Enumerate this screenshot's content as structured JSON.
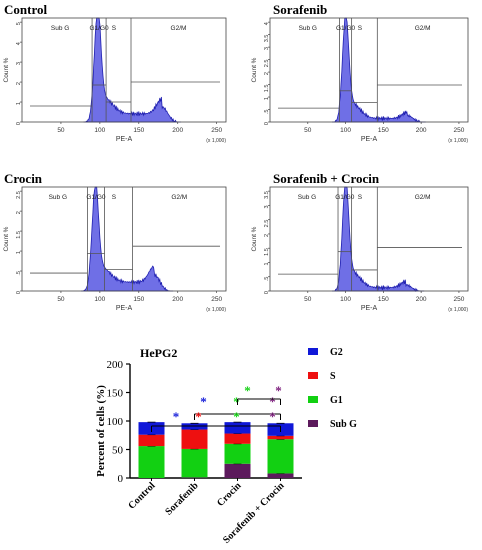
{
  "histograms": [
    {
      "title": "Control",
      "gate_labels": {
        "subg": "Sub G",
        "g1g0": "G1/G0",
        "s": "S",
        "g2m": "G2/M"
      },
      "y_label": "Count %",
      "y_ticks": [
        "0",
        "1",
        "2",
        "3",
        "4",
        "5"
      ],
      "y_max": 5.2,
      "x_label": "PE-A",
      "x_ticks": [
        "50",
        "100",
        "150",
        "200",
        "250"
      ],
      "x_multiplier": "(x 1,000)",
      "peak_x": 97,
      "peak_y": 5.0,
      "g2_x": 180,
      "g2_y": 0.75,
      "gates": {
        "subg_end": 90,
        "g1_end": 108,
        "s_end": 140
      },
      "gate_levels": {
        "subg": 0.8,
        "g1": 1.85,
        "s": 1.0,
        "g2m": 2.0
      }
    },
    {
      "title": "Sorafenib",
      "gate_labels": {
        "subg": "Sub G",
        "g1g0": "G1/G0",
        "s": "S",
        "g2m": "G2/M"
      },
      "y_label": "Count %",
      "y_ticks": [
        "0",
        ".5",
        "1",
        "1.5",
        "2",
        "2.5",
        "3",
        "3.5",
        "4"
      ],
      "y_max": 4.5,
      "x_label": "PE-A",
      "x_ticks": [
        "50",
        "100",
        "150",
        "200",
        "250"
      ],
      "x_multiplier": "(x 1,000)",
      "peak_x": 100,
      "peak_y": 4.1,
      "g2_x": 182,
      "g2_y": 0.28,
      "gates": {
        "subg_end": 92,
        "g1_end": 108,
        "s_end": 142
      },
      "gate_levels": {
        "subg": 0.6,
        "g1": 1.35,
        "s": 0.85,
        "g2m": 1.6
      }
    },
    {
      "title": "Crocin",
      "gate_labels": {
        "subg": "Sub G",
        "g1g0": "G1/G0",
        "s": "S",
        "g2m": "G2/M"
      },
      "y_label": "Count %",
      "y_ticks": [
        "0",
        ".5",
        "1",
        "1.5",
        "2",
        "2.5"
      ],
      "y_max": 2.9,
      "x_label": "PE-A",
      "x_ticks": [
        "50",
        "100",
        "150",
        "200",
        "250"
      ],
      "x_multiplier": "(x 1,000)",
      "peak_x": 94,
      "peak_y": 2.6,
      "g2_x": 170,
      "g2_y": 0.45,
      "gates": {
        "subg_end": 84,
        "g1_end": 106,
        "s_end": 142
      },
      "gate_levels": {
        "subg": 0.5,
        "g1": 1.05,
        "s": 0.6,
        "g2m": 1.25
      }
    },
    {
      "title": "Sorafenib + Crocin",
      "gate_labels": {
        "subg": "Sub G",
        "g1g0": "G1/G0",
        "s": "S",
        "g2m": "G2/M"
      },
      "y_label": "Count %",
      "y_ticks": [
        "0",
        ".5",
        "1",
        "1.5",
        "2",
        "2.5",
        "3",
        "3.5"
      ],
      "y_max": 3.7,
      "x_label": "PE-A",
      "x_ticks": [
        "50",
        "100",
        "150",
        "200",
        "250"
      ],
      "x_multiplier": "(x 1,000)",
      "peak_x": 100,
      "peak_y": 3.5,
      "g2_x": 180,
      "g2_y": 0.22,
      "gates": {
        "subg_end": 90,
        "g1_end": 108,
        "s_end": 142
      },
      "gate_levels": {
        "subg": 0.6,
        "g1": 1.4,
        "s": 0.75,
        "g2m": 1.55
      }
    }
  ],
  "chart_data": {
    "type": "bar",
    "stacked": true,
    "title": "HePG2",
    "ylabel": "Percent of  cells (%)",
    "xlabel": "",
    "ylim": [
      0,
      200
    ],
    "yticks": [
      "0",
      "50",
      "100",
      "150",
      "200"
    ],
    "categories": [
      "Control",
      "Sorafenib",
      "Crocin",
      "Sorafenib + Crocin"
    ],
    "series": [
      {
        "name": "Sub G",
        "color": "#5c1a5c",
        "values": [
          0,
          1,
          25,
          8
        ]
      },
      {
        "name": "G1",
        "color": "#12d012",
        "values": [
          56,
          50,
          35,
          60
        ]
      },
      {
        "name": "S",
        "color": "#ee1010",
        "values": [
          20,
          34,
          18,
          6
        ]
      },
      {
        "name": "G2",
        "color": "#1018d8",
        "values": [
          22,
          11,
          20,
          22
        ]
      }
    ],
    "legend_order": [
      "G2",
      "S",
      "G1",
      "Sub G"
    ],
    "legend_position": "top-right",
    "significance_star": "*",
    "significance_colors": {
      "G2": "#1018d8",
      "S": "#ee1010",
      "G1": "#12d012",
      "SubG": "#7a1a7a"
    }
  }
}
